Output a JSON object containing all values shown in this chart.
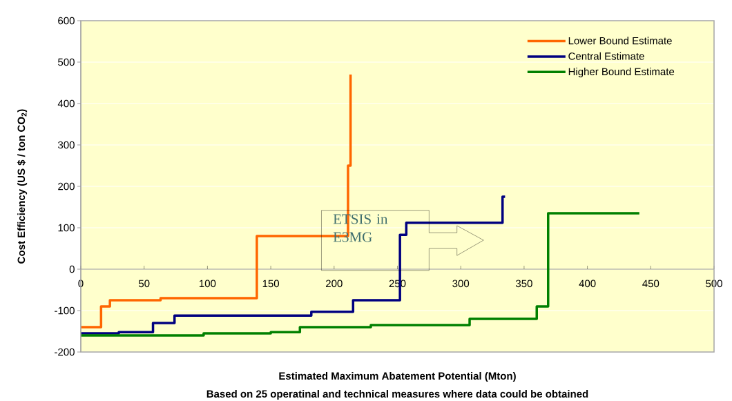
{
  "chart_data": {
    "type": "step",
    "xlabel": "Estimated Maximum Abatement Potential (Mton)",
    "ylabel": "Cost Efficiency (US $ / ton CO$_{2}$)",
    "annotations": [
      "ETSIS in E3MG",
      "Based on 25 operatinal and technical measures where data could be obtained"
    ],
    "xlim": [
      0,
      500
    ],
    "ylim": [
      -200,
      600
    ],
    "xticks": [
      0,
      50,
      100,
      150,
      200,
      250,
      300,
      350,
      400,
      450,
      500
    ],
    "yticks": [
      -200,
      -100,
      0,
      100,
      200,
      300,
      400,
      500,
      600
    ],
    "grid": "y",
    "legend": "top right",
    "marker": "none",
    "line_style": "solid",
    "series": [
      {
        "name": "Lower Bound Estimate",
        "color": "#ff6600",
        "x": [
          0,
          16,
          23,
          63,
          139,
          211,
          213
        ],
        "values": [
          -140,
          -90,
          -75,
          -70,
          80,
          250,
          470
        ]
      },
      {
        "name": "Central Estimate",
        "color": "#000080",
        "x": [
          0,
          30,
          57,
          74,
          182,
          215,
          252,
          257,
          333,
          335
        ],
        "values": [
          -155,
          -152,
          -130,
          -112,
          -103,
          -75,
          83,
          112,
          175,
          175
        ]
      },
      {
        "name": "Higher Bound Estimate",
        "color": "#008000",
        "x": [
          0,
          97,
          150,
          173,
          229,
          307,
          360,
          369,
          441
        ],
        "values": [
          -160,
          -155,
          -152,
          -140,
          -135,
          -120,
          -90,
          135,
          135
        ]
      }
    ]
  }
}
